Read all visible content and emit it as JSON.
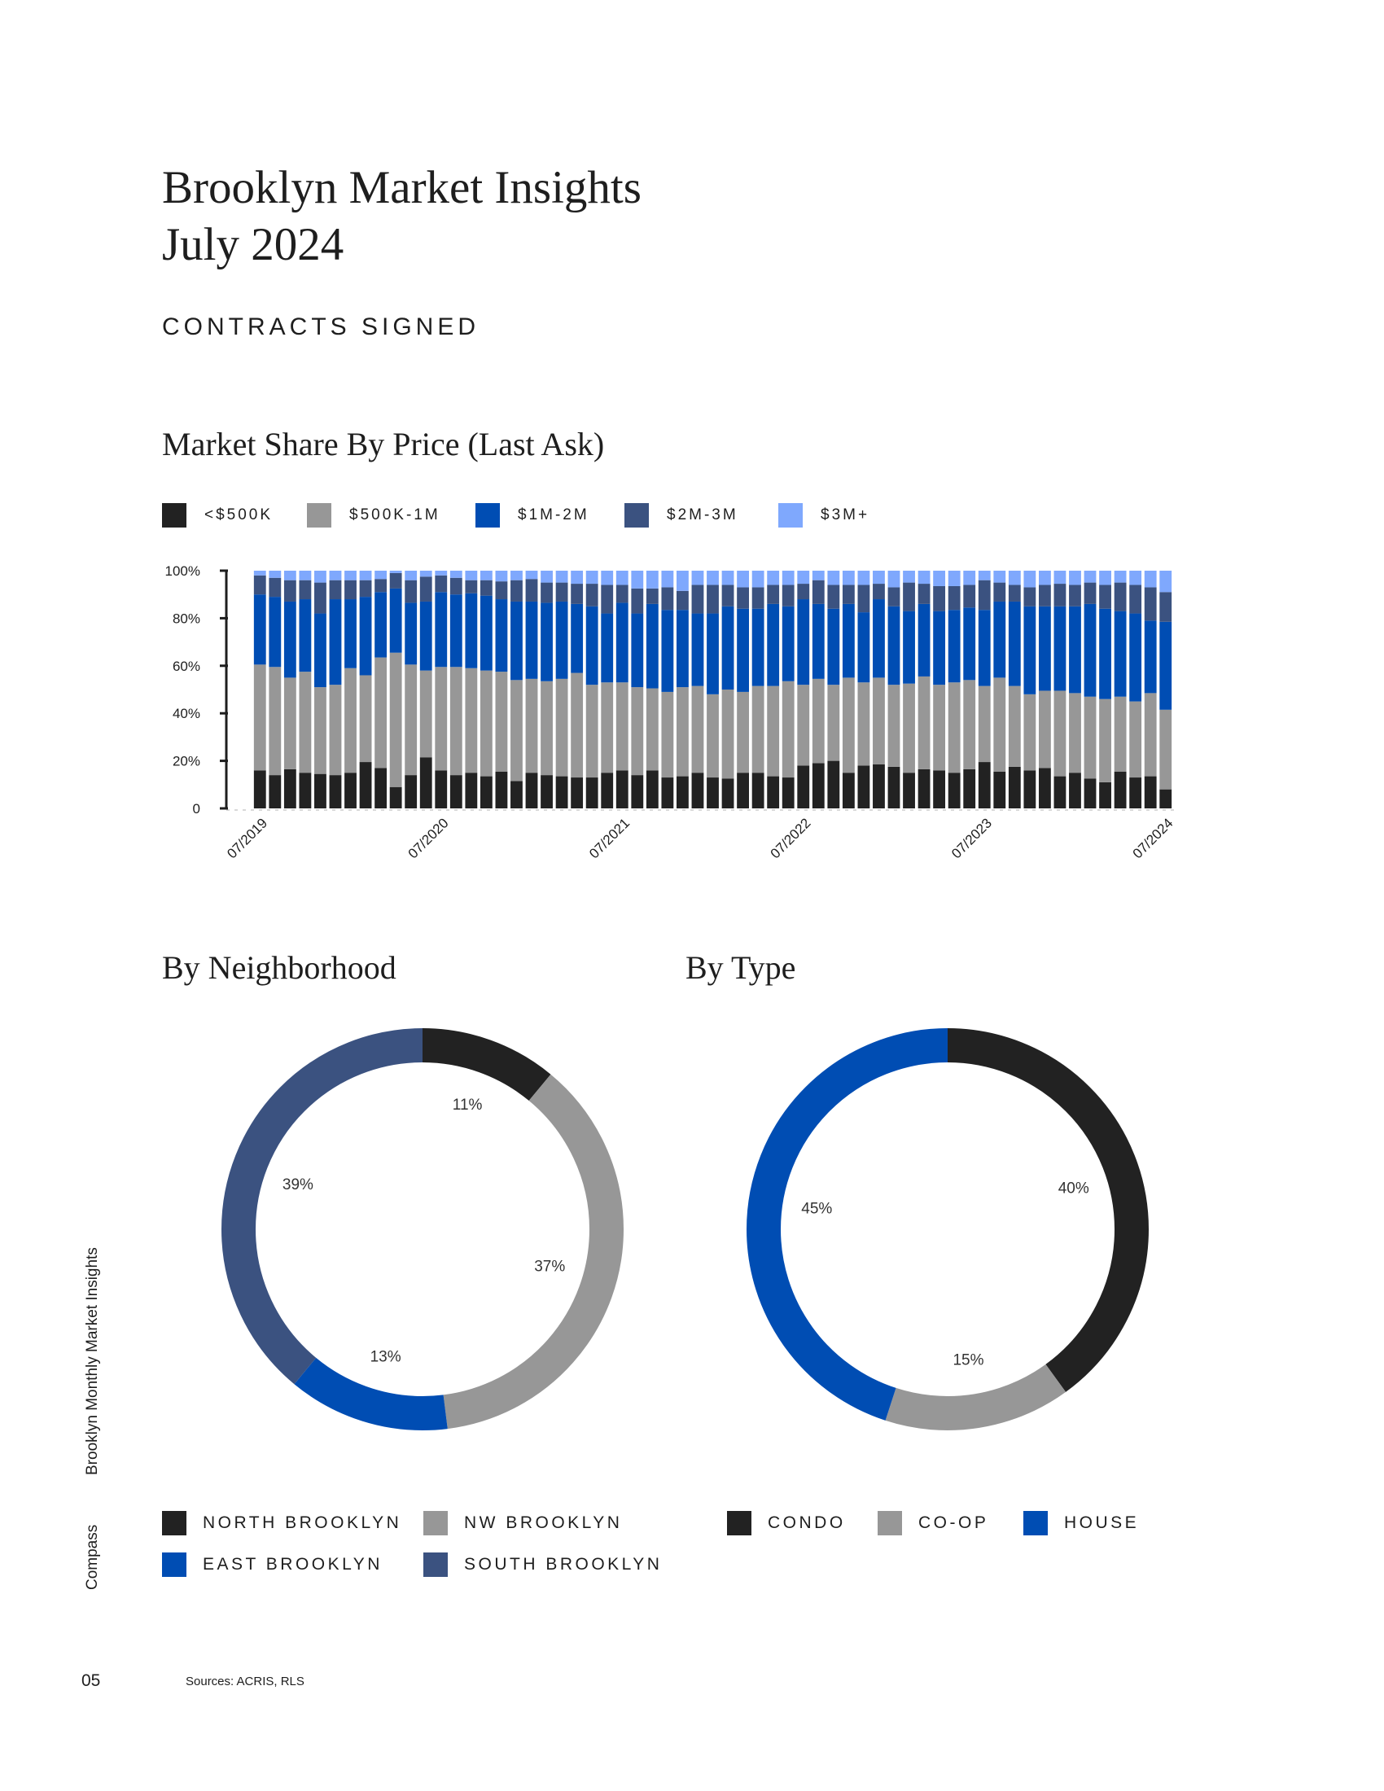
{
  "header": {
    "title_line1": "Brooklyn Market Insights",
    "title_line2": "July 2024",
    "section": "CONTRACTS SIGNED"
  },
  "colors": {
    "under500k": "#222222",
    "500k_1m": "#979797",
    "1m_2m": "#004db3",
    "2m_3m": "#3b5280",
    "3m_plus": "#7fa8fd"
  },
  "chart_data": [
    {
      "type": "bar",
      "stacked": true,
      "title": "Market Share By Price (Last Ask)",
      "xlabel": "",
      "ylabel": "",
      "ylim": [
        0,
        100
      ],
      "yticks": [
        "0",
        "20%",
        "40%",
        "60%",
        "80%",
        "100%"
      ],
      "xtick_labels": [
        "07/2019",
        "07/2020",
        "07/2021",
        "07/2022",
        "07/2023",
        "07/2024"
      ],
      "xtick_every": 12,
      "legend_position": "top",
      "n_bars": 61,
      "series": [
        {
          "name": "<$500K",
          "color": "#222222",
          "values": [
            16,
            14,
            16.5,
            15,
            14.5,
            14,
            15,
            19.5,
            17,
            9,
            14,
            21.5,
            16,
            14,
            15,
            13.5,
            15.5,
            11.5,
            15,
            14,
            13.5,
            13,
            13,
            15,
            16,
            14,
            16,
            13,
            13.5,
            15,
            13,
            12.5,
            15,
            15,
            13.5,
            13,
            18,
            19,
            20,
            15,
            18,
            18.5,
            17.5,
            15,
            16.5,
            16,
            15,
            16.5,
            19.5,
            15.5,
            17.5,
            16,
            17,
            13.5,
            15,
            12.5,
            11,
            15.5,
            13,
            13.5,
            8
          ]
        },
        {
          "name": "$500K-1M",
          "color": "#979797",
          "values": [
            44.5,
            45.5,
            38.5,
            42.5,
            36.5,
            38,
            44,
            36.5,
            46.5,
            56.5,
            46.5,
            36.5,
            43.5,
            45.5,
            44,
            44.5,
            42,
            42.5,
            39.5,
            39.5,
            41,
            44,
            39,
            38,
            37,
            37,
            34.5,
            36,
            37.5,
            36.5,
            35,
            37.5,
            34,
            36.5,
            38,
            40.5,
            34,
            35.5,
            32,
            40,
            35,
            36.5,
            34.5,
            37.5,
            39,
            36,
            38,
            37.5,
            32,
            39.5,
            34,
            32,
            32.5,
            36,
            33.5,
            34.5,
            35,
            31.5,
            32,
            35,
            33.5
          ]
        },
        {
          "name": "$1M-2M",
          "color": "#004db3",
          "values": [
            29.5,
            29.5,
            32,
            30.5,
            31,
            36,
            29,
            33,
            27.5,
            27,
            26,
            29,
            31.5,
            30.5,
            31.5,
            31.5,
            30.5,
            33,
            32.5,
            33,
            32.5,
            29,
            33,
            29,
            33.5,
            31,
            35.5,
            34.5,
            32.5,
            30.5,
            34,
            35,
            35,
            32.5,
            34.5,
            31.5,
            36,
            31.5,
            32,
            31,
            29.5,
            33,
            33,
            30.5,
            30.5,
            31,
            30.5,
            30.5,
            32,
            32,
            35.5,
            37,
            35.5,
            35.5,
            36.5,
            39,
            38,
            36,
            37,
            30.5,
            37
          ]
        },
        {
          "name": "$2M-3M",
          "color": "#3b5280",
          "values": [
            8,
            8,
            9,
            8,
            13,
            8,
            8,
            7,
            5.5,
            6.5,
            9.5,
            10.5,
            7,
            7,
            5.5,
            6.5,
            7.5,
            9,
            9.5,
            8.5,
            8,
            8.5,
            9.5,
            12,
            7.5,
            10.5,
            6.5,
            9.5,
            8,
            12,
            12,
            9,
            9,
            9,
            8,
            9,
            6.5,
            10,
            10,
            8,
            11.5,
            6.5,
            8,
            12,
            8.5,
            10.5,
            10,
            9.5,
            12.5,
            8,
            7,
            8,
            9,
            9.5,
            9,
            9,
            10,
            12,
            12,
            14,
            12.5
          ]
        },
        {
          "name": "$3M+",
          "color": "#7fa8fd",
          "values": [
            2,
            3,
            4,
            4,
            5,
            4,
            4,
            4,
            3.5,
            1,
            4,
            2.5,
            2,
            3,
            4,
            4,
            4.5,
            4,
            3.5,
            5,
            5,
            5.5,
            5.5,
            6,
            6,
            7.5,
            7.5,
            7,
            8.5,
            6,
            6,
            6,
            7,
            7,
            6,
            6,
            5.5,
            4,
            6,
            6,
            6,
            5.5,
            7,
            5,
            5.5,
            6.5,
            6.5,
            6,
            4,
            5,
            6,
            7,
            6,
            5.5,
            6,
            5,
            6,
            5,
            6,
            7,
            9
          ]
        }
      ],
      "legend": [
        "<$500K",
        "$500K-1M",
        "$1M-2M",
        "$2M-3M",
        "$3M+"
      ]
    },
    {
      "type": "pie",
      "donut": true,
      "title": "By Neighborhood",
      "slices": [
        {
          "name": "NORTH BROOKLYN",
          "value": 11,
          "label": "11%",
          "color": "#222222"
        },
        {
          "name": "NW BROOKLYN",
          "value": 37,
          "label": "37%",
          "color": "#979797"
        },
        {
          "name": "EAST BROOKLYN",
          "value": 13,
          "label": "13%",
          "color": "#004db3"
        },
        {
          "name": "SOUTH BROOKLYN",
          "value": 39,
          "label": "39%",
          "color": "#3b5280"
        }
      ]
    },
    {
      "type": "pie",
      "donut": true,
      "title": "By Type",
      "slices": [
        {
          "name": "CONDO",
          "value": 40,
          "label": "40%",
          "color": "#222222"
        },
        {
          "name": "CO-OP",
          "value": 15,
          "label": "15%",
          "color": "#979797"
        },
        {
          "name": "HOUSE",
          "value": 45,
          "label": "45%",
          "color": "#004db3"
        }
      ]
    }
  ],
  "sidebar": {
    "report_name": "Brooklyn Monthly Market Insights",
    "brand": "Compass"
  },
  "footer": {
    "page_number": "05",
    "sources": "Sources: ACRIS, RLS"
  }
}
